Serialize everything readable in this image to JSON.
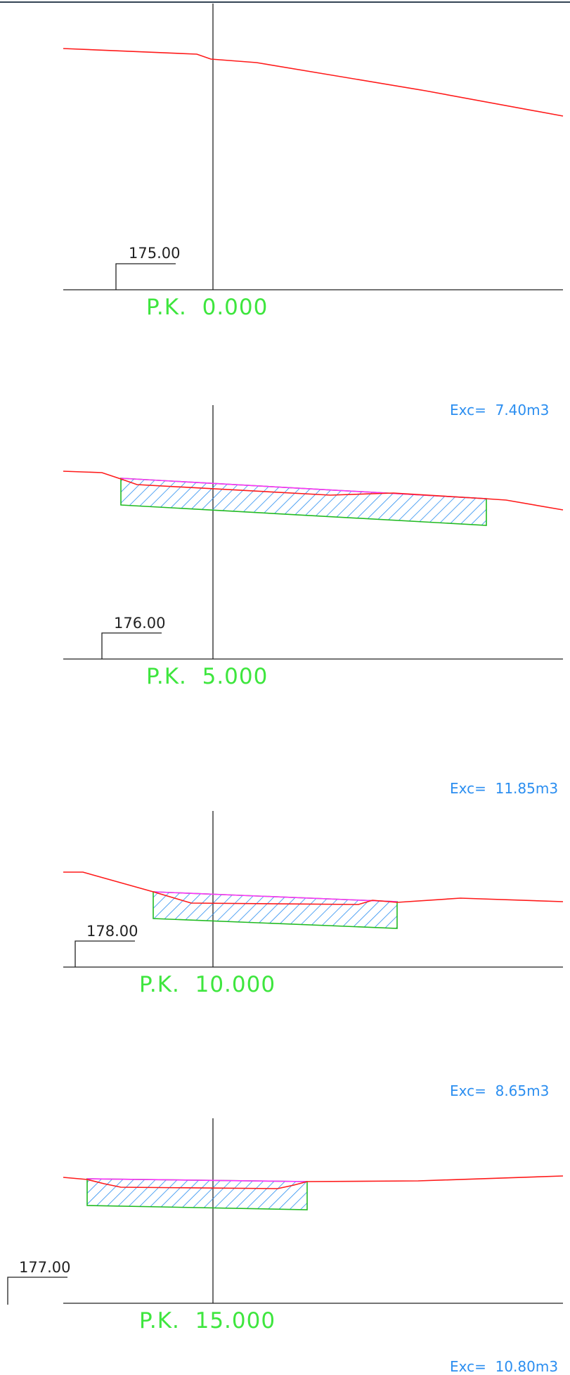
{
  "colors": {
    "terrain": "#ff1a1a",
    "design_surface": "#ff33ff",
    "excavation_outline": "#22bb22",
    "excavation_hatch": "#2b8ef0",
    "label_pk": "#3ee63e",
    "label_exc": "#2b8ef0",
    "axis": "#222222",
    "border": "#334455"
  },
  "sections": [
    {
      "pk_label": "P.K.  0.000",
      "datum_label": "175.00",
      "excavation_label": "",
      "has_excavation": false
    },
    {
      "pk_label": "P.K.  5.000",
      "datum_label": "176.00",
      "excavation_label": "Exc=  7.40m3",
      "has_excavation": true
    },
    {
      "pk_label": "P.K.  10.000",
      "datum_label": "178.00",
      "excavation_label": "Exc=  11.85m3",
      "has_excavation": true
    },
    {
      "pk_label": "P.K.  15.000",
      "datum_label": "177.00",
      "excavation_label": "Exc=  8.65m3",
      "has_excavation": true
    }
  ],
  "trailing_label": "Exc=  10.80m3"
}
